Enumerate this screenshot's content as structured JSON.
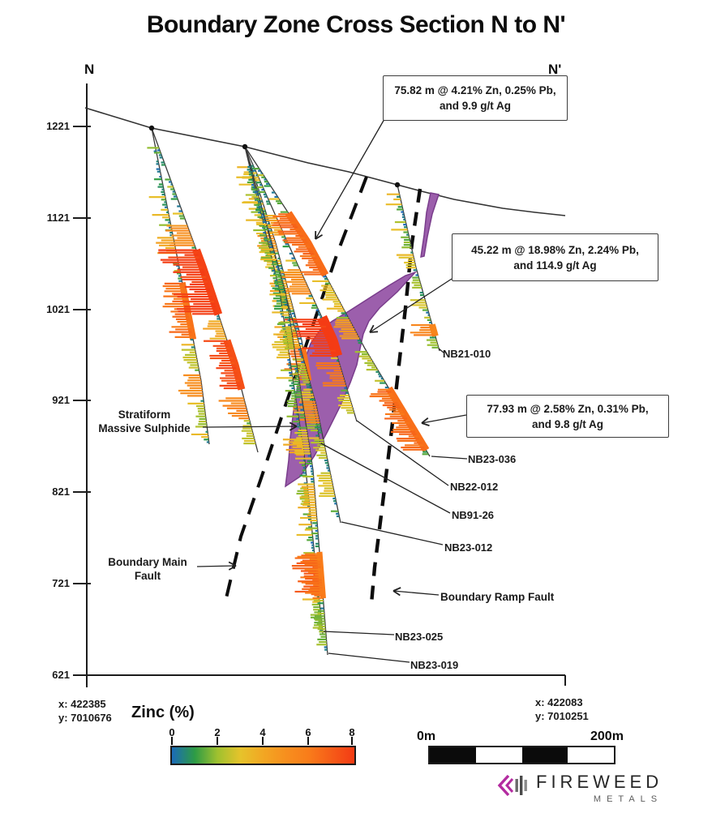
{
  "title": "Boundary Zone Cross Section N to N'",
  "section_ends": {
    "left": "N",
    "right": "N'"
  },
  "axis": {
    "elevation_ticks": [
      "1221",
      "1121",
      "1021",
      "921",
      "821",
      "721",
      "621"
    ]
  },
  "annotations": [
    {
      "line1": "75.82 m @ 4.21% Zn, 0.25% Pb,",
      "line2": "and 9.9 g/t Ag"
    },
    {
      "line1": "45.22 m @ 18.98% Zn, 2.24% Pb,",
      "line2": "and 114.9 g/t Ag"
    },
    {
      "line1": "77.93 m @ 2.58% Zn, 0.31% Pb,",
      "line2": "and 9.8 g/t Ag"
    }
  ],
  "labels": {
    "stratiform1": "Stratiform",
    "stratiform2": "Massive Sulphide",
    "mainfault1": "Boundary Main",
    "mainfault2": "Fault",
    "rampfault": "Boundary Ramp Fault"
  },
  "drillholes": [
    "NB21-010",
    "NB23-036",
    "NB22-012",
    "NB91-26",
    "NB23-012",
    "NB23-025",
    "NB23-019"
  ],
  "corner_coords": {
    "left": {
      "x": "x: 422385",
      "y": "y: 7010676"
    },
    "right": {
      "x": "x: 422083",
      "y": "y: 7010251"
    }
  },
  "legend": {
    "title": "Zinc (%)",
    "ticks": [
      "0",
      "2",
      "4",
      "6",
      "8"
    ],
    "zinc_stops": [
      "#1b6ab8",
      "#2d9b45",
      "#9fc12f",
      "#e6c32b",
      "#f2a723",
      "#f78f1e",
      "#f97c1a",
      "#f65c18",
      "#f43b14"
    ]
  },
  "scalebar": {
    "left": "0m",
    "right": "200m"
  },
  "logo": {
    "wordmark": "FIREWEED",
    "sub": "METALS",
    "accent": "#b32ba0"
  },
  "colors": {
    "sulphide_fill": "#9c5fac",
    "sulphide_stroke": "#7a3d8c",
    "trace": "#3a3a3a",
    "surface": "#333333",
    "fault": "#0d0d0d",
    "leader": "#222222",
    "axis": "#1c1c1c"
  }
}
